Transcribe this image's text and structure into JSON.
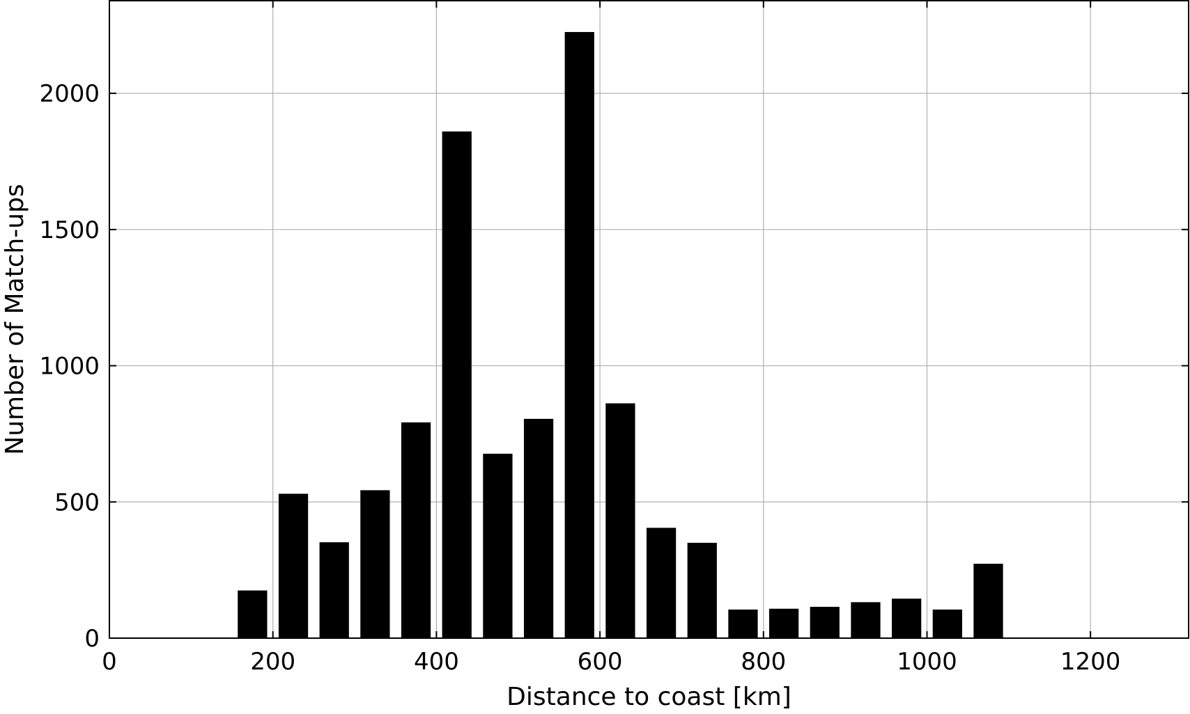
{
  "chart_data": {
    "type": "bar",
    "title": "",
    "xlabel": "Distance to coast [km]",
    "ylabel": "Number of Match-ups",
    "xlim": [
      0,
      1320
    ],
    "ylim": [
      0,
      2340
    ],
    "xticks": [
      0,
      200,
      400,
      600,
      800,
      1000,
      1200
    ],
    "yticks": [
      0,
      500,
      1000,
      1500,
      2000
    ],
    "grid": true,
    "bar_width": 36,
    "colors": {
      "bar": "#000000",
      "grid": "#b0b0b0",
      "axis": "#000000"
    },
    "bars": [
      {
        "x": 175,
        "value": 175
      },
      {
        "x": 225,
        "value": 530
      },
      {
        "x": 275,
        "value": 352
      },
      {
        "x": 325,
        "value": 543
      },
      {
        "x": 375,
        "value": 792
      },
      {
        "x": 425,
        "value": 1860
      },
      {
        "x": 475,
        "value": 677
      },
      {
        "x": 525,
        "value": 805
      },
      {
        "x": 575,
        "value": 2225
      },
      {
        "x": 625,
        "value": 862
      },
      {
        "x": 675,
        "value": 405
      },
      {
        "x": 725,
        "value": 350
      },
      {
        "x": 775,
        "value": 105
      },
      {
        "x": 825,
        "value": 108
      },
      {
        "x": 875,
        "value": 115
      },
      {
        "x": 925,
        "value": 132
      },
      {
        "x": 975,
        "value": 145
      },
      {
        "x": 1025,
        "value": 105
      },
      {
        "x": 1075,
        "value": 273
      }
    ]
  }
}
